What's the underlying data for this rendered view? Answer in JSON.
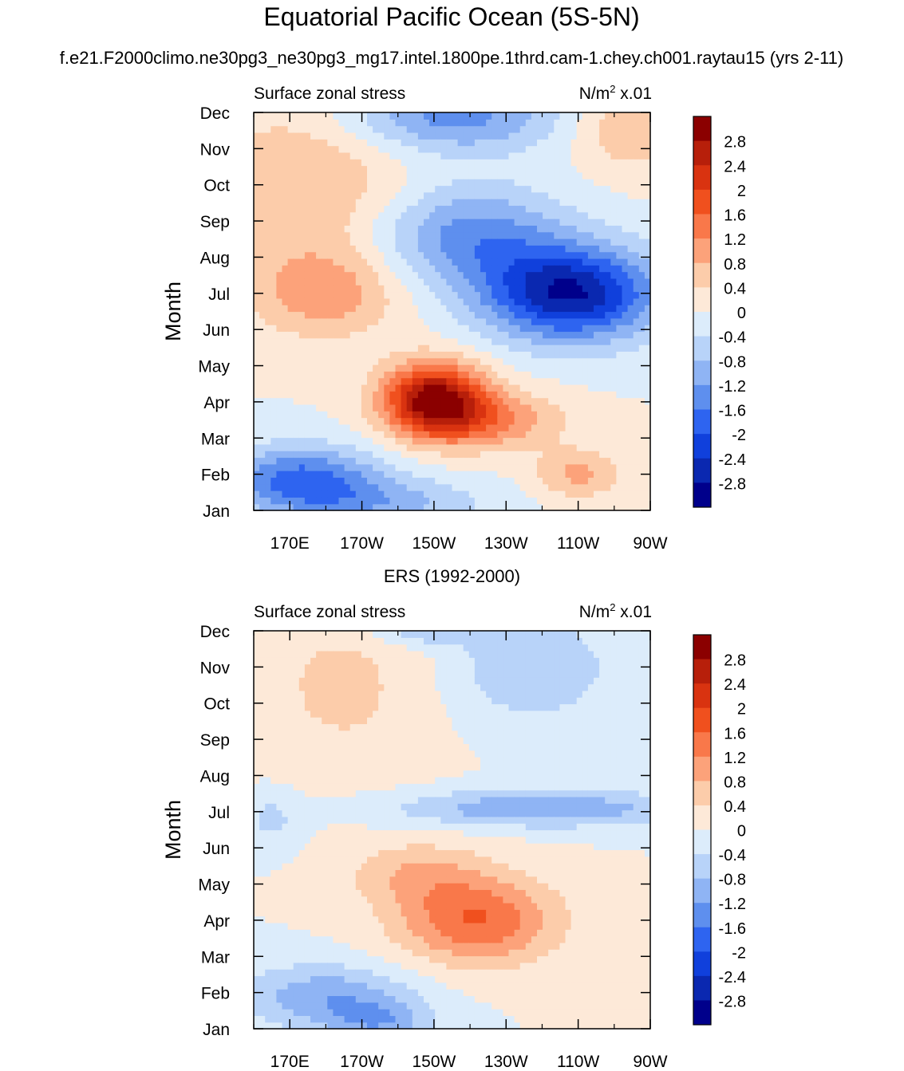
{
  "figure": {
    "title": "Equatorial Pacific Ocean (5S-5N)",
    "subtitle": "f.e21.F2000climo.ne30pg3_ne30pg3_mg17.intel.1800pe.1thrd.cam-1.chey.ch001.raytau15 (yrs 2-11)"
  },
  "chart_data": [
    {
      "type": "heatmap",
      "title": "",
      "left_label": "Surface zonal stress",
      "units_label": "N/m",
      "units_sup": "2",
      "units_suffix": "x.01",
      "ylabel": "Month",
      "x_ticks": [
        "170E",
        "170W",
        "150W",
        "130W",
        "110W",
        "90W"
      ],
      "x_range": [
        160,
        270
      ],
      "y_ticks": [
        "Jan",
        "Feb",
        "Mar",
        "Apr",
        "May",
        "Jun",
        "Jul",
        "Aug",
        "Sep",
        "Oct",
        "Nov",
        "Dec"
      ],
      "features": [
        {
          "lon": 210,
          "month": 3.1,
          "sx": 14,
          "sy": 1.0,
          "amp": 3.0
        },
        {
          "lon": 225,
          "month": 2.5,
          "sx": 20,
          "sy": 0.8,
          "amp": 1.2
        },
        {
          "lon": 250,
          "month": 1.0,
          "sx": 12,
          "sy": 0.7,
          "amp": 0.9
        },
        {
          "lon": 180,
          "month": 6.0,
          "sx": 20,
          "sy": 1.2,
          "amp": 1.0
        },
        {
          "lon": 248,
          "month": 6.0,
          "sx": 24,
          "sy": 1.3,
          "amp": -2.8
        },
        {
          "lon": 220,
          "month": 7.6,
          "sx": 26,
          "sy": 1.4,
          "amp": -1.4
        },
        {
          "lon": 173,
          "month": 0.9,
          "sx": 22,
          "sy": 0.9,
          "amp": -1.7
        },
        {
          "lon": 195,
          "month": 0.2,
          "sx": 30,
          "sy": 0.7,
          "amp": -0.9
        },
        {
          "lon": 215,
          "month": 10.9,
          "sx": 30,
          "sy": 1.0,
          "amp": -1.4
        },
        {
          "lon": 175,
          "month": 9.0,
          "sx": 28,
          "sy": 2.5,
          "amp": 0.8
        },
        {
          "lon": 265,
          "month": 10.6,
          "sx": 16,
          "sy": 1.2,
          "amp": 0.8
        }
      ]
    },
    {
      "type": "heatmap",
      "title": "ERS (1992-2000)",
      "left_label": "Surface zonal stress",
      "units_label": "N/m",
      "units_sup": "2",
      "units_suffix": "x.01",
      "ylabel": "Month",
      "x_ticks": [
        "170E",
        "170W",
        "150W",
        "130W",
        "110W",
        "90W"
      ],
      "x_range": [
        160,
        270
      ],
      "y_ticks": [
        "Jan",
        "Feb",
        "Mar",
        "Apr",
        "May",
        "Jun",
        "Jul",
        "Aug",
        "Sep",
        "Oct",
        "Nov",
        "Dec"
      ],
      "features": [
        {
          "lon": 222,
          "month": 3.0,
          "sx": 22,
          "sy": 1.2,
          "amp": 1.6
        },
        {
          "lon": 205,
          "month": 4.3,
          "sx": 20,
          "sy": 0.9,
          "amp": 0.7
        },
        {
          "lon": 240,
          "month": 6.1,
          "sx": 40,
          "sy": 0.5,
          "amp": -1.2
        },
        {
          "lon": 180,
          "month": 0.9,
          "sx": 24,
          "sy": 0.9,
          "amp": -1.1
        },
        {
          "lon": 195,
          "month": 0.2,
          "sx": 14,
          "sy": 0.6,
          "amp": -0.9
        },
        {
          "lon": 237,
          "month": 10.0,
          "sx": 22,
          "sy": 1.5,
          "amp": -0.8
        },
        {
          "lon": 208,
          "month": 11.0,
          "sx": 16,
          "sy": 0.4,
          "amp": -0.8
        },
        {
          "lon": 185,
          "month": 9.5,
          "sx": 25,
          "sy": 2.5,
          "amp": 0.5
        },
        {
          "lon": 165,
          "month": 5.8,
          "sx": 8,
          "sy": 0.8,
          "amp": -0.5
        }
      ]
    }
  ],
  "colorbar": {
    "labels": [
      "2.8",
      "2.4",
      "2",
      "1.6",
      "1.2",
      "0.8",
      "0.4",
      "0",
      "-0.4",
      "-0.8",
      "-1.2",
      "-1.6",
      "-2",
      "-2.4",
      "-2.8"
    ],
    "levels": [
      2.8,
      2.4,
      2.0,
      1.6,
      1.2,
      0.8,
      0.4,
      0.0,
      -0.4,
      -0.8,
      -1.2,
      -1.6,
      -2.0,
      -2.4,
      -2.8
    ],
    "colors": [
      "#8b0000",
      "#b71f0a",
      "#d93310",
      "#f0501e",
      "#f9784a",
      "#fca27a",
      "#fcccaa",
      "#fde9d8",
      "#dcecfb",
      "#b8d3f9",
      "#8fb4f4",
      "#5e8fee",
      "#2e64f0",
      "#1040dc",
      "#0a28b0",
      "#00008b"
    ]
  }
}
